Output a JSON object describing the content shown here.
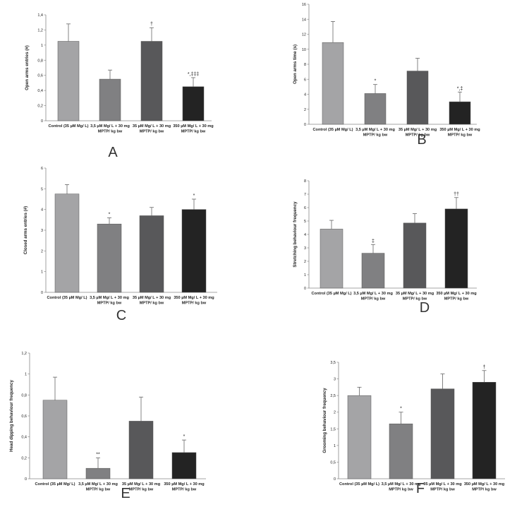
{
  "chart_data": [
    {
      "type": "bar",
      "panel_label": "A",
      "ylabel": "Open arms entries (#)",
      "ylim": [
        0,
        1.4
      ],
      "y_ticks": [
        "0",
        "0,2",
        "0,4",
        "0,6",
        "0,8",
        "1",
        "1,2",
        "1,4"
      ],
      "categories": [
        [
          "Control (35 µM Mg/ L)"
        ],
        [
          "3,5 µM Mg/ L + 30 mg",
          "MPTP/ kg bw"
        ],
        [
          "35 µM Mg/ L + 30 mg",
          "MPTP/ kg bw"
        ],
        [
          "350 µM Mg/ L + 30 mg",
          "MPTP/ kg bw"
        ]
      ],
      "values": [
        1.05,
        0.55,
        1.05,
        0.45
      ],
      "errors": [
        0.23,
        0.12,
        0.18,
        0.12
      ],
      "annotations": [
        "",
        "",
        "†",
        "*,‡‡‡"
      ]
    },
    {
      "type": "bar",
      "panel_label": "B",
      "ylabel": "Open arms time (s)",
      "ylim": [
        0,
        16
      ],
      "y_ticks": [
        "0",
        "2",
        "4",
        "6",
        "8",
        "10",
        "12",
        "14",
        "16"
      ],
      "categories": [
        [
          "Control (35 µM Mg/ L)"
        ],
        [
          "3,5 µM Mg/ L + 30 mg",
          "MPTP/ kg bw"
        ],
        [
          "35 µM Mg/ L + 30 mg",
          "MPTP/ kg bw"
        ],
        [
          "350 µM Mg/ L + 30 mg",
          "MPTP/ kg bw"
        ]
      ],
      "values": [
        10.9,
        4.1,
        7.1,
        3.0
      ],
      "errors": [
        2.8,
        1.2,
        1.7,
        1.3
      ],
      "annotations": [
        "",
        "*",
        "",
        "*,‡"
      ]
    },
    {
      "type": "bar",
      "panel_label": "C",
      "ylabel": "Closed arms entries (#)",
      "ylim": [
        0,
        6
      ],
      "y_ticks": [
        "0",
        "1",
        "2",
        "3",
        "4",
        "5",
        "6"
      ],
      "categories": [
        [
          "Control (35 µM Mg/ L)"
        ],
        [
          "3,5 µM Mg/ L + 30 mg",
          "MPTP/ kg bw"
        ],
        [
          "35 µM Mg/ L + 30 mg",
          "MPTP/ kg bw"
        ],
        [
          "350 µM Mg/ L + 30 mg",
          "MPTP/ kg bw"
        ]
      ],
      "values": [
        4.75,
        3.3,
        3.7,
        4.0
      ],
      "errors": [
        0.45,
        0.3,
        0.4,
        0.5
      ],
      "annotations": [
        "",
        "*",
        "",
        "*"
      ]
    },
    {
      "type": "bar",
      "panel_label": "D",
      "ylabel": "Stretching behaviour frequency",
      "ylim": [
        0,
        8
      ],
      "y_ticks": [
        "0",
        "1",
        "2",
        "3",
        "4",
        "5",
        "6",
        "7",
        "8"
      ],
      "categories": [
        [
          "Control (35 µM Mg/ L)"
        ],
        [
          "3,5 µM Mg/ L + 30 mg",
          "MPTP/ kg bw"
        ],
        [
          "35 µM Mg/ L + 30 mg",
          "MPTP/ kg bw"
        ],
        [
          "350 µM Mg/ L + 30 mg",
          "MPTP/ kg bw"
        ]
      ],
      "values": [
        4.4,
        2.6,
        4.85,
        5.9
      ],
      "errors": [
        0.65,
        0.65,
        0.7,
        0.85
      ],
      "annotations": [
        "",
        "‡",
        "",
        "††"
      ]
    },
    {
      "type": "bar",
      "panel_label": "E",
      "ylabel": "Head dipping behaviour frequency",
      "ylim": [
        0,
        1.2
      ],
      "y_ticks": [
        "0",
        "0,2",
        "0,4",
        "0,6",
        "0,8",
        "1",
        "1,2"
      ],
      "categories": [
        [
          "Control (35 µM Mg/ L)"
        ],
        [
          "3,5 µM Mg/ L + 30 mg",
          "MPTP/ kg bw"
        ],
        [
          "35 µM Mg/ L + 30 mg",
          "MPTP/ kg bw"
        ],
        [
          "350 µM Mg/ L + 30 mg",
          "MPTP/ kg bw"
        ]
      ],
      "values": [
        0.75,
        0.1,
        0.55,
        0.25
      ],
      "errors": [
        0.22,
        0.1,
        0.23,
        0.12
      ],
      "annotations": [
        "",
        "**",
        "",
        "*"
      ]
    },
    {
      "type": "bar",
      "panel_label": "F",
      "ylabel": "Grooming behaviour frequency",
      "ylim": [
        0,
        3.5
      ],
      "y_ticks": [
        "0",
        "0,5",
        "1",
        "1,5",
        "2",
        "2,5",
        "3",
        "3,5"
      ],
      "categories": [
        [
          "Control (35 µM Mg/ L)"
        ],
        [
          "3,5 µM Mg/ L + 30 mg",
          "MPTP/ kg bw"
        ],
        [
          "35 µM Mg/ L + 30 mg",
          "MPTP/ kg bw"
        ],
        [
          "350 µM Mg/ L + 30 mg",
          "MPTP/ kg bw"
        ]
      ],
      "values": [
        2.5,
        1.65,
        2.7,
        2.9
      ],
      "errors": [
        0.25,
        0.35,
        0.45,
        0.35
      ],
      "annotations": [
        "",
        "*",
        "",
        "†"
      ]
    }
  ],
  "colors": {
    "bars": [
      "#a4a4a6",
      "#808082",
      "#58585a",
      "#232323"
    ],
    "bar_stroke": "#555555",
    "axis": "#888888"
  }
}
